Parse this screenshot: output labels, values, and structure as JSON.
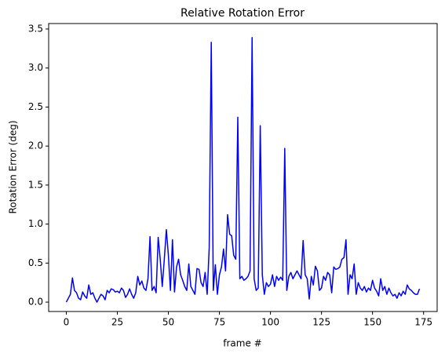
{
  "chart_data": {
    "type": "line",
    "title": "Relative Rotation Error",
    "xlabel": "frame #",
    "ylabel": "Rotation Error (deg)",
    "x": [
      0,
      1,
      2,
      3,
      4,
      5,
      6,
      7,
      8,
      9,
      10,
      11,
      12,
      13,
      14,
      15,
      16,
      17,
      18,
      19,
      20,
      21,
      22,
      23,
      24,
      25,
      26,
      27,
      28,
      29,
      30,
      31,
      32,
      33,
      34,
      35,
      36,
      37,
      38,
      39,
      40,
      41,
      42,
      43,
      44,
      45,
      46,
      47,
      48,
      49,
      50,
      51,
      52,
      53,
      54,
      55,
      56,
      57,
      58,
      59,
      60,
      61,
      62,
      63,
      64,
      65,
      66,
      67,
      68,
      69,
      70,
      71,
      72,
      73,
      74,
      75,
      76,
      77,
      78,
      79,
      80,
      81,
      82,
      83,
      84,
      85,
      86,
      87,
      88,
      89,
      90,
      91,
      92,
      93,
      94,
      95,
      96,
      97,
      98,
      99,
      100,
      101,
      102,
      103,
      104,
      105,
      106,
      107,
      108,
      109,
      110,
      111,
      112,
      113,
      114,
      115,
      116,
      117,
      118,
      119,
      120,
      121,
      122,
      123,
      124,
      125,
      126,
      127,
      128,
      129,
      130,
      131,
      132,
      133,
      134,
      135,
      136,
      137,
      138,
      139,
      140,
      141,
      142,
      143,
      144,
      145,
      146,
      147,
      148,
      149,
      150,
      151,
      152,
      153,
      154,
      155,
      156,
      157,
      158,
      159,
      160,
      161,
      162,
      163,
      164,
      165,
      166,
      167,
      168,
      169,
      170,
      171,
      172,
      173
    ],
    "series": [
      {
        "name": "Rotation Error",
        "color": "#0000ff",
        "values": [
          0.0,
          0.05,
          0.1,
          0.31,
          0.15,
          0.12,
          0.05,
          0.03,
          0.13,
          0.08,
          0.05,
          0.22,
          0.1,
          0.12,
          0.05,
          0.0,
          0.05,
          0.1,
          0.08,
          0.03,
          0.15,
          0.12,
          0.17,
          0.16,
          0.13,
          0.14,
          0.12,
          0.18,
          0.15,
          0.06,
          0.1,
          0.17,
          0.1,
          0.05,
          0.12,
          0.33,
          0.22,
          0.27,
          0.18,
          0.15,
          0.3,
          0.84,
          0.15,
          0.2,
          0.12,
          0.83,
          0.55,
          0.2,
          0.55,
          0.93,
          0.6,
          0.15,
          0.8,
          0.13,
          0.45,
          0.55,
          0.35,
          0.28,
          0.2,
          0.15,
          0.49,
          0.2,
          0.15,
          0.1,
          0.43,
          0.42,
          0.25,
          0.2,
          0.38,
          0.1,
          0.7,
          3.33,
          0.15,
          0.48,
          0.1,
          0.35,
          0.45,
          0.68,
          0.4,
          1.12,
          0.87,
          0.85,
          0.6,
          0.55,
          2.37,
          0.3,
          0.33,
          0.28,
          0.3,
          0.33,
          0.4,
          3.39,
          0.3,
          0.15,
          0.18,
          2.26,
          0.35,
          0.1,
          0.25,
          0.2,
          0.23,
          0.35,
          0.2,
          0.33,
          0.28,
          0.32,
          0.28,
          1.97,
          0.15,
          0.33,
          0.38,
          0.3,
          0.35,
          0.4,
          0.35,
          0.3,
          0.79,
          0.35,
          0.3,
          0.04,
          0.33,
          0.22,
          0.46,
          0.4,
          0.15,
          0.18,
          0.33,
          0.28,
          0.38,
          0.35,
          0.12,
          0.45,
          0.42,
          0.43,
          0.45,
          0.55,
          0.57,
          0.8,
          0.1,
          0.35,
          0.3,
          0.49,
          0.1,
          0.25,
          0.18,
          0.15,
          0.2,
          0.13,
          0.18,
          0.15,
          0.28,
          0.18,
          0.14,
          0.08,
          0.3,
          0.15,
          0.2,
          0.1,
          0.18,
          0.12,
          0.08,
          0.1,
          0.05,
          0.12,
          0.08,
          0.14,
          0.1,
          0.22,
          0.17,
          0.15,
          0.12,
          0.1,
          0.1,
          0.17
        ]
      }
    ],
    "xlim": [
      -8.65,
      181.65
    ],
    "ylim": [
      -0.12,
      3.57
    ],
    "xticks": [
      0,
      25,
      50,
      75,
      100,
      125,
      150,
      175
    ],
    "yticks": [
      {
        "value": 0,
        "label": "0.0"
      },
      {
        "value": 0.5,
        "label": "0.5"
      },
      {
        "value": 1,
        "label": "1.0"
      },
      {
        "value": 1.5,
        "label": "1.5"
      },
      {
        "value": 2,
        "label": "2.0"
      },
      {
        "value": 2.5,
        "label": "2.5"
      },
      {
        "value": 3,
        "label": "3.0"
      },
      {
        "value": 3.5,
        "label": "3.5"
      }
    ]
  }
}
